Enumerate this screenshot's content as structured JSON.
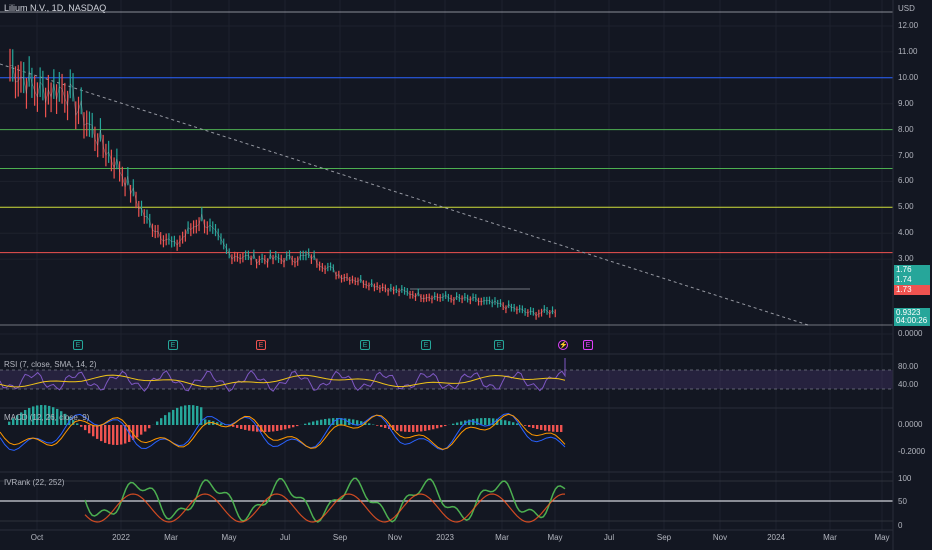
{
  "header": {
    "title": "Lilium N.V., 1D, NASDAQ",
    "currency": "USD"
  },
  "price_axis": {
    "ticks": [
      "12.00",
      "11.00",
      "10.00",
      "9.00",
      "8.00",
      "7.00",
      "6.00",
      "5.00",
      "4.00",
      "3.00",
      "0.0000"
    ]
  },
  "price_badges": [
    {
      "text": "1.76",
      "color": "#26a69a"
    },
    {
      "text": "1.74",
      "color": "#26a69a"
    },
    {
      "text": "1.73",
      "color": "#ef5350"
    },
    {
      "text": "0.9323",
      "color": "#26a69a"
    },
    {
      "text": "04:00:26",
      "color": "#26a69a"
    }
  ],
  "time_axis": {
    "ticks": [
      "Oct",
      "2022",
      "Mar",
      "May",
      "Jul",
      "Sep",
      "Nov",
      "2023",
      "Mar",
      "May",
      "Jul",
      "Sep",
      "Nov",
      "2024",
      "Mar",
      "May"
    ]
  },
  "horizontal_levels": [
    {
      "price": "10.00",
      "color": "#2962ff"
    },
    {
      "price": "8.00",
      "color": "#4caf50"
    },
    {
      "price": "6.50",
      "color": "#4caf50"
    },
    {
      "price": "5.00",
      "color": "#cddc39"
    },
    {
      "price": "3.25",
      "color": "#ef5350"
    }
  ],
  "events": [
    {
      "label": "E",
      "color": "#26a69a"
    },
    {
      "label": "E",
      "color": "#26a69a"
    },
    {
      "label": "E",
      "color": "#ef5350"
    },
    {
      "label": "E",
      "color": "#26a69a"
    },
    {
      "label": "E",
      "color": "#26a69a"
    },
    {
      "label": "E",
      "color": "#26a69a"
    },
    {
      "label": "⚡",
      "color": "#e040fb"
    },
    {
      "label": "E",
      "color": "#e040fb"
    }
  ],
  "indicators": {
    "rsi": {
      "title": "RSI (7, close, SMA, 14, 2)",
      "ticks": [
        "80.00",
        "40.00"
      ]
    },
    "macd": {
      "title": "MACD (12, 26, close, 9)",
      "ticks": [
        "0.0000",
        "-0.2000"
      ]
    },
    "ivrank": {
      "title": "IVRank (22, 252)",
      "ticks": [
        "100",
        "50",
        "0"
      ]
    }
  },
  "chart_data": {
    "type": "line",
    "title": "Lilium N.V., 1D, NASDAQ",
    "xlabel": "",
    "ylabel": "USD",
    "x": [
      "2021-09",
      "2021-10",
      "2021-11",
      "2021-12",
      "2022-01",
      "2022-02",
      "2022-03",
      "2022-04",
      "2022-05",
      "2022-06",
      "2022-07",
      "2022-08",
      "2022-09",
      "2022-10",
      "2022-11",
      "2022-12",
      "2023-01",
      "2023-02",
      "2023-03",
      "2023-04",
      "2023-05"
    ],
    "series": [
      {
        "values": [
          10.5,
          9.5,
          9.6,
          8.0,
          6.5,
          4.5,
          3.5,
          4.6,
          3.2,
          3.0,
          3.0,
          3.1,
          2.4,
          2.1,
          1.8,
          1.6,
          1.5,
          1.4,
          1.2,
          0.9,
          1.0
        ]
      }
    ],
    "ylim": [
      0,
      12.5
    ]
  }
}
